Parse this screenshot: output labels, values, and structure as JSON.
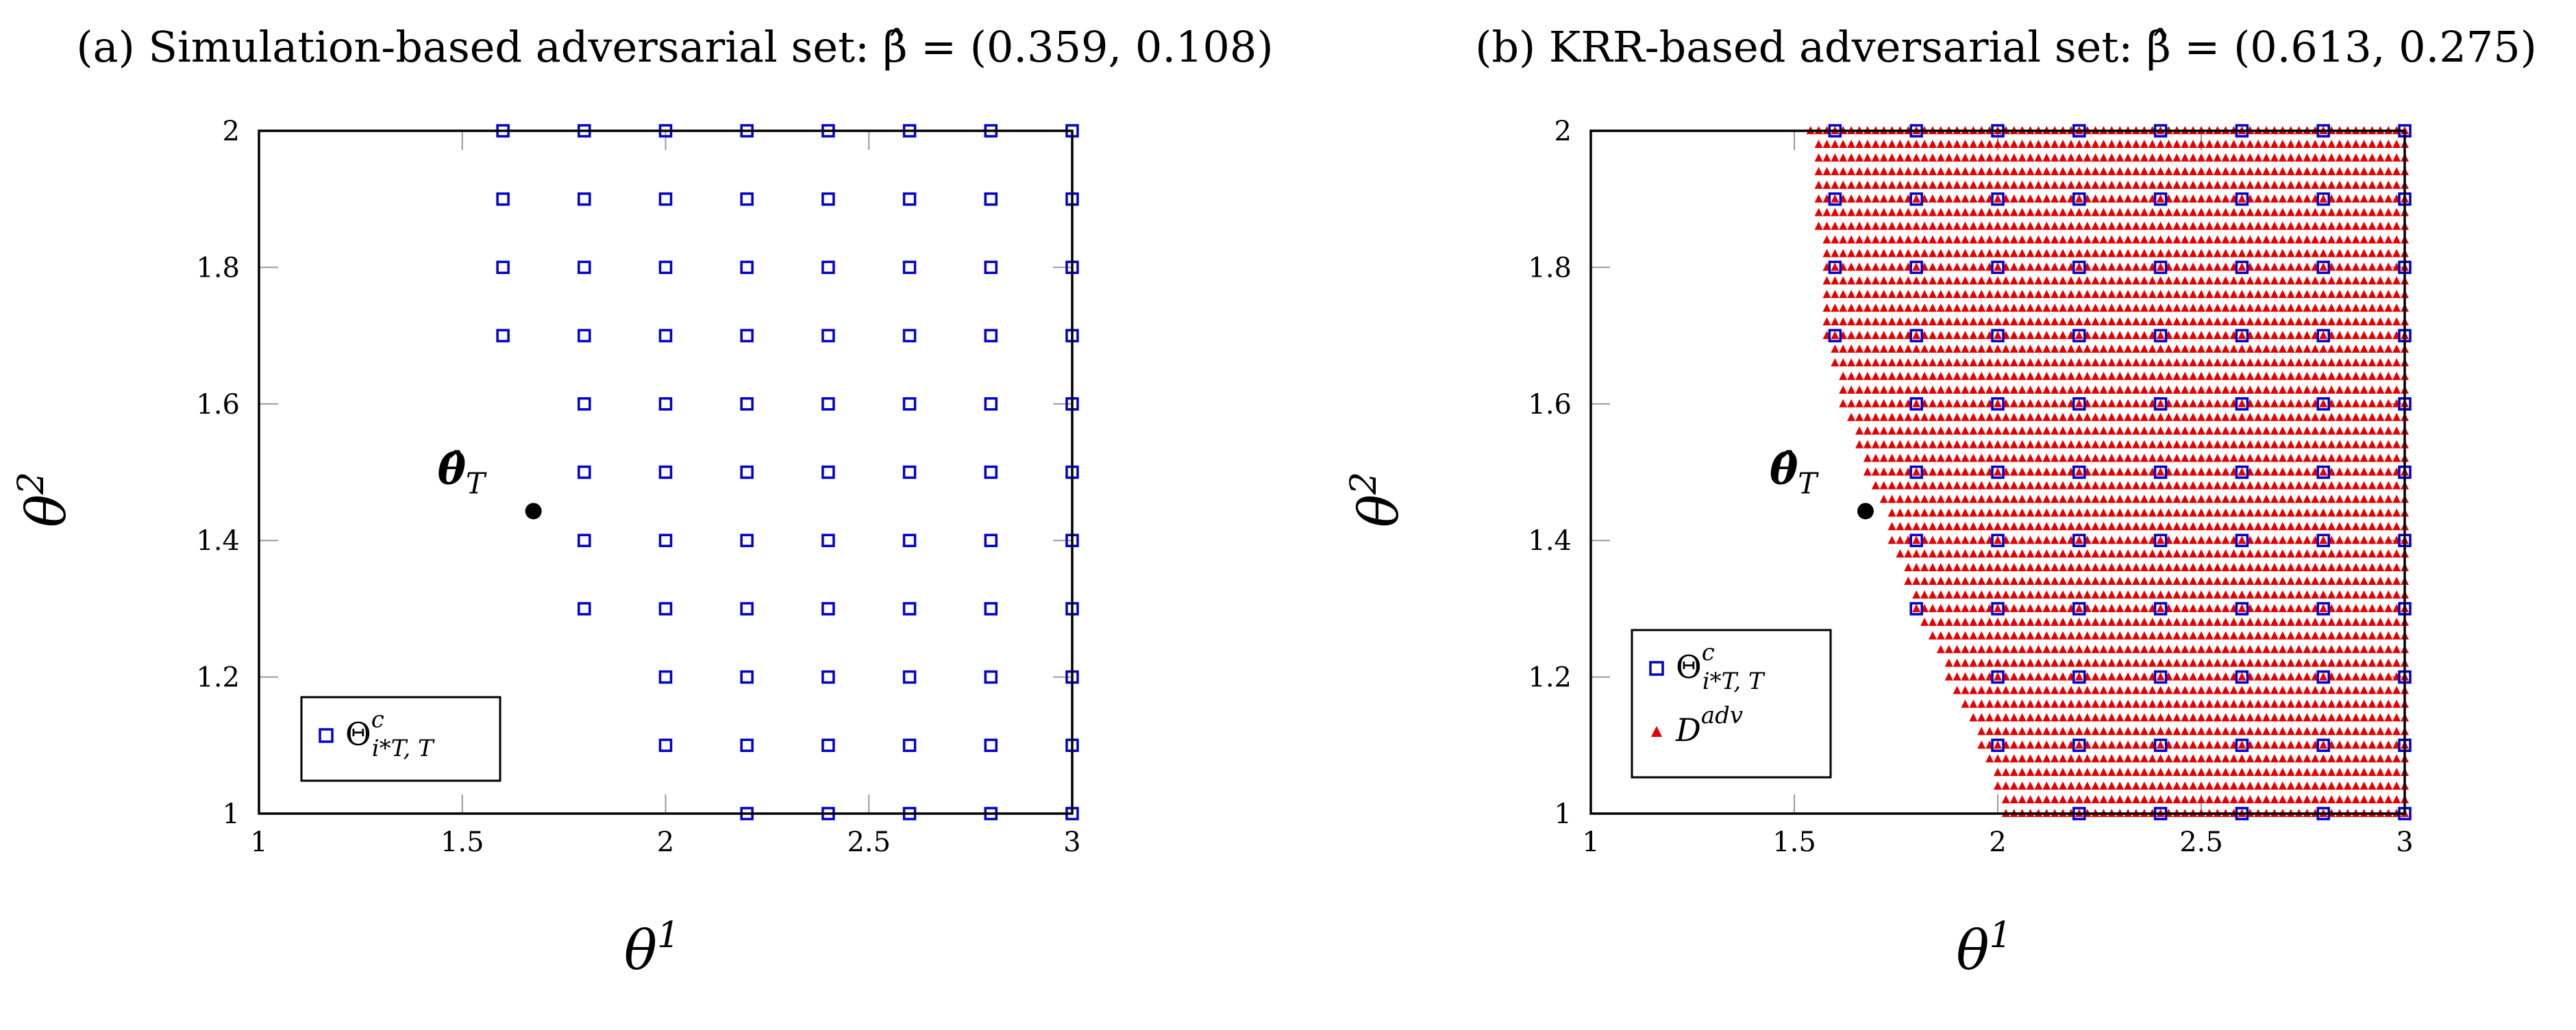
{
  "colors": {
    "square": "#0000cc",
    "triangle": "#e60000",
    "point": "#000000",
    "axis": "#000000"
  },
  "chart_data": [
    {
      "type": "scatter",
      "title": "(a) Simulation-based adversarial set: β̂ = (0.359, 0.108)",
      "xlabel": "θ",
      "xlabel_sup": "1",
      "ylabel": "θ",
      "ylabel_sup": "2",
      "xlim": [
        1,
        3
      ],
      "ylim": [
        1,
        2
      ],
      "xticks": [
        "1",
        "1.5",
        "2",
        "2.5",
        "3"
      ],
      "yticks": [
        "1",
        "1.2",
        "1.4",
        "1.6",
        "1.8",
        "2"
      ],
      "annotation": {
        "text": "θ̂",
        "sub": "T",
        "x": 1.675,
        "y": 1.443
      },
      "legend": [
        {
          "marker": "square",
          "symbol": "Θ",
          "sup": "c",
          "sub": "i*T, T"
        }
      ],
      "series": [
        {
          "marker": "square",
          "columns": [
            {
              "x": 1.6,
              "y_from": 1.7,
              "y_to": 2.0
            },
            {
              "x": 1.8,
              "y_from": 1.3,
              "y_to": 2.0
            },
            {
              "x": 2.0,
              "y_from": 1.1,
              "y_to": 2.0
            },
            {
              "x": 2.2,
              "y_from": 1.0,
              "y_to": 2.0
            },
            {
              "x": 2.4,
              "y_from": 1.0,
              "y_to": 2.0
            },
            {
              "x": 2.6,
              "y_from": 1.0,
              "y_to": 2.0
            },
            {
              "x": 2.8,
              "y_from": 1.0,
              "y_to": 2.0
            },
            {
              "x": 3.0,
              "y_from": 1.0,
              "y_to": 2.0
            }
          ],
          "y_step": 0.1
        }
      ]
    },
    {
      "type": "scatter",
      "title": "(b) KRR-based adversarial set: β̂ = (0.613, 0.275)",
      "xlabel": "θ",
      "xlabel_sup": "1",
      "ylabel": "θ",
      "ylabel_sup": "2",
      "xlim": [
        1,
        3
      ],
      "ylim": [
        1,
        2
      ],
      "xticks": [
        "1",
        "1.5",
        "2",
        "2.5",
        "3"
      ],
      "yticks": [
        "1",
        "1.2",
        "1.4",
        "1.6",
        "1.8",
        "2"
      ],
      "annotation": {
        "text": "θ̂",
        "sub": "T",
        "x": 1.675,
        "y": 1.443
      },
      "legend": [
        {
          "marker": "square",
          "symbol": "Θ",
          "sup": "c",
          "sub": "i*T, T"
        },
        {
          "marker": "triangle",
          "symbol": "D",
          "sup": "adv",
          "sub": ""
        }
      ],
      "series": [
        {
          "marker": "square",
          "columns": [
            {
              "x": 1.6,
              "y_from": 1.7,
              "y_to": 2.0
            },
            {
              "x": 1.8,
              "y_from": 1.3,
              "y_to": 2.0
            },
            {
              "x": 2.0,
              "y_from": 1.1,
              "y_to": 2.0
            },
            {
              "x": 2.2,
              "y_from": 1.0,
              "y_to": 2.0
            },
            {
              "x": 2.4,
              "y_from": 1.0,
              "y_to": 2.0
            },
            {
              "x": 2.6,
              "y_from": 1.0,
              "y_to": 2.0
            },
            {
              "x": 2.8,
              "y_from": 1.0,
              "y_to": 2.0
            },
            {
              "x": 3.0,
              "y_from": 1.0,
              "y_to": 2.0
            }
          ],
          "y_step": 0.1
        },
        {
          "marker": "triangle",
          "grid_step": 0.02,
          "boundary": [
            {
              "y": 2.0,
              "x_min": 1.54
            },
            {
              "y": 1.7,
              "x_min": 1.58
            },
            {
              "y": 1.6,
              "x_min": 1.62
            },
            {
              "y": 1.5,
              "x_min": 1.68
            },
            {
              "y": 1.45,
              "x_min": 1.72
            },
            {
              "y": 1.4,
              "x_min": 1.74
            },
            {
              "y": 1.3,
              "x_min": 1.8
            },
            {
              "y": 1.2,
              "x_min": 1.88
            },
            {
              "y": 1.1,
              "x_min": 1.96
            },
            {
              "y": 1.0,
              "x_min": 2.02
            }
          ],
          "x_max": 3.0
        }
      ]
    }
  ]
}
